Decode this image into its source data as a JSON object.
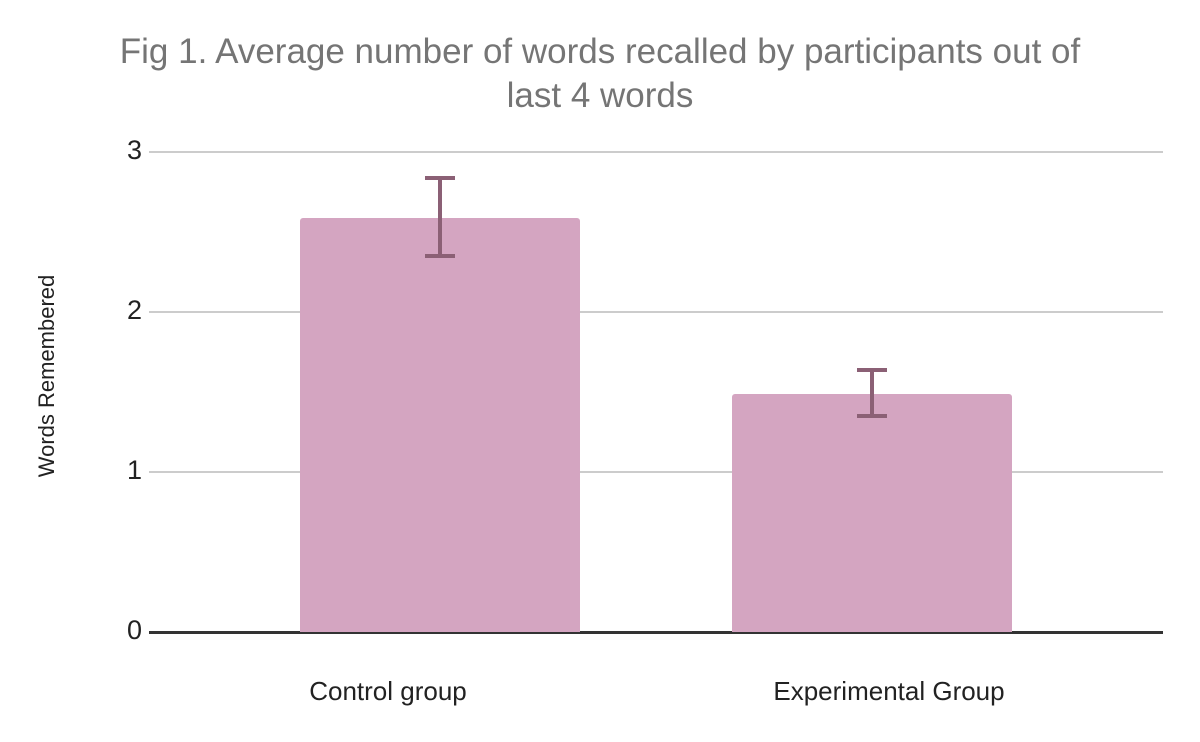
{
  "chart_data": {
    "type": "bar",
    "title": "Fig 1. Average number of words recalled by participants out of last 4 words",
    "title_lines": [
      "Fig 1. Average number of words recalled by participants out of",
      "last 4 words"
    ],
    "ylabel": "Words Remembered",
    "xlabel": "",
    "categories": [
      "Control group",
      "Experimental Group"
    ],
    "values": [
      2.59,
      1.49
    ],
    "error_bars": [
      {
        "low": 2.34,
        "high": 2.85
      },
      {
        "low": 1.34,
        "high": 1.65
      }
    ],
    "ylim": [
      0,
      3
    ],
    "y_ticks": [
      3,
      2,
      1,
      0
    ],
    "y_tick_labels": [
      "3",
      "2",
      "1",
      "0"
    ],
    "grid": true,
    "legend": "none",
    "colors": {
      "bar_fill": "#d4a5c1",
      "error_bar": "#8b6075",
      "title_text": "#757575",
      "axis_text": "#222222",
      "gridline": "#cccccc",
      "baseline": "#333333",
      "background": "#ffffff"
    }
  }
}
